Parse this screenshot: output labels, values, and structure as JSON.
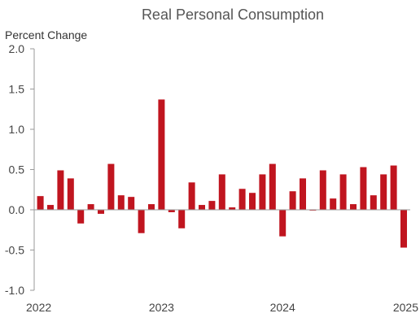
{
  "chart_data": {
    "type": "bar",
    "title": "Real Personal Consumption",
    "ylabel": "Percent Change",
    "xlabel": "",
    "ylim": [
      -1.0,
      2.0
    ],
    "y_ticks": [
      "2.0",
      "1.5",
      "1.0",
      "0.5",
      "0.0",
      "-0.5",
      "-1.0"
    ],
    "y_tick_values": [
      2.0,
      1.5,
      1.0,
      0.5,
      0.0,
      -0.5,
      -1.0
    ],
    "x_ticks": [
      "2022",
      "2023",
      "2024",
      "2025"
    ],
    "x_tick_indices": [
      0,
      12,
      24,
      36
    ],
    "grid": false,
    "legend": "none",
    "bar_color": "#c0151f",
    "categories": [
      "2022-01",
      "2022-02",
      "2022-03",
      "2022-04",
      "2022-05",
      "2022-06",
      "2022-07",
      "2022-08",
      "2022-09",
      "2022-10",
      "2022-11",
      "2022-12",
      "2023-01",
      "2023-02",
      "2023-03",
      "2023-04",
      "2023-05",
      "2023-06",
      "2023-07",
      "2023-08",
      "2023-09",
      "2023-10",
      "2023-11",
      "2023-12",
      "2024-01",
      "2024-02",
      "2024-03",
      "2024-04",
      "2024-05",
      "2024-06",
      "2024-07",
      "2024-08",
      "2024-09",
      "2024-10",
      "2024-11",
      "2024-12",
      "2025-01"
    ],
    "values": [
      0.17,
      0.06,
      0.49,
      0.39,
      -0.17,
      0.07,
      -0.05,
      0.57,
      0.18,
      0.16,
      -0.29,
      0.07,
      1.37,
      -0.03,
      -0.23,
      0.34,
      0.06,
      0.11,
      0.44,
      0.03,
      0.26,
      0.21,
      0.44,
      0.57,
      -0.33,
      0.23,
      0.39,
      -0.01,
      0.49,
      0.14,
      0.44,
      0.07,
      0.53,
      0.18,
      0.44,
      0.55,
      -0.47
    ]
  }
}
